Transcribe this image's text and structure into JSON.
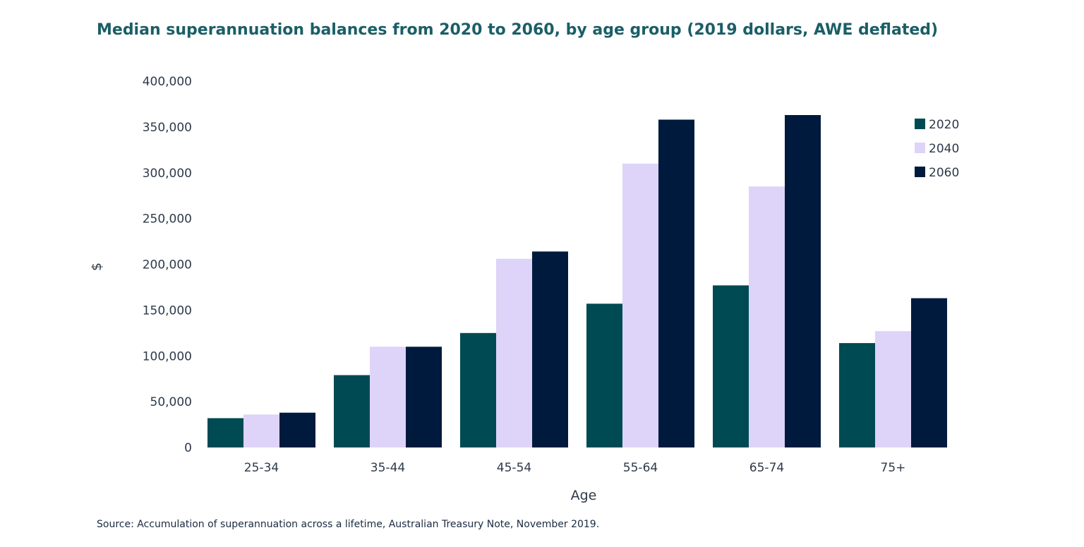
{
  "chart_data": {
    "type": "bar",
    "title": "Median superannuation balances from 2020 to 2060, by age group (2019 dollars, AWE deflated)",
    "xlabel": "Age",
    "ylabel": "$",
    "categories": [
      "25-34",
      "35-44",
      "45-54",
      "55-64",
      "65-74",
      "75+"
    ],
    "series": [
      {
        "name": "2020",
        "color": "#004a53",
        "values": [
          32000,
          79000,
          125000,
          157000,
          177000,
          114000
        ]
      },
      {
        "name": "2040",
        "color": "#ded3f8",
        "values": [
          36000,
          110000,
          206000,
          310000,
          285000,
          127000
        ]
      },
      {
        "name": "2060",
        "color": "#001a3d",
        "values": [
          38000,
          110000,
          214000,
          358000,
          363000,
          163000
        ]
      }
    ],
    "ylim": [
      0,
      400000
    ],
    "yticks": [
      0,
      50000,
      100000,
      150000,
      200000,
      250000,
      300000,
      350000,
      400000
    ],
    "ytick_labels": [
      "0",
      "50,000",
      "100,000",
      "150,000",
      "200,000",
      "250,000",
      "300,000",
      "350,000",
      "400,000"
    ],
    "grid": false,
    "legend": "top-right"
  },
  "source": "Source: Accumulation of superannuation across a lifetime, Australian Treasury Note, November 2019."
}
